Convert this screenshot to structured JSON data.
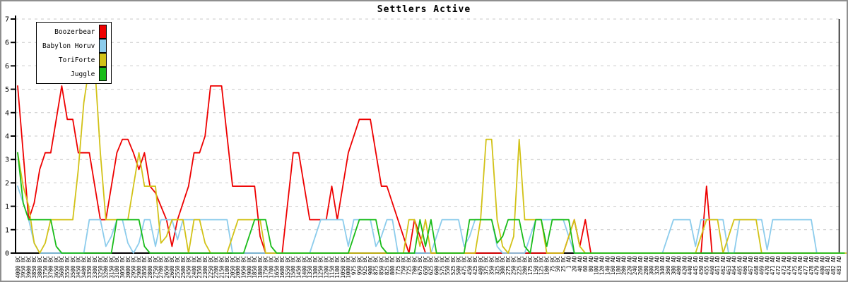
{
  "chart_data": {
    "type": "line",
    "title": "Settlers Active",
    "grid": "dashed-horizontal",
    "legend_position": "top-left",
    "y_axis": {
      "min": 0,
      "max": 7,
      "ticks": [
        {
          "v": 0,
          "label": "0"
        },
        {
          "v": 0.7,
          "label": "1"
        },
        {
          "v": 1.4,
          "label": "1"
        },
        {
          "v": 2.1,
          "label": "2"
        },
        {
          "v": 2.8,
          "label": "3"
        },
        {
          "v": 3.5,
          "label": "4"
        },
        {
          "v": 4.2,
          "label": "4"
        },
        {
          "v": 4.9,
          "label": "5"
        },
        {
          "v": 5.6,
          "label": "6"
        },
        {
          "v": 6.3,
          "label": "6"
        },
        {
          "v": 7,
          "label": "7"
        }
      ]
    },
    "x_labels": [
      "4000 BC",
      "3950 BC",
      "3900 BC",
      "3850 BC",
      "3800 BC",
      "3750 BC",
      "3700 BC",
      "3650 BC",
      "3600 BC",
      "3550 BC",
      "3500 BC",
      "3450 BC",
      "3400 BC",
      "3350 BC",
      "3300 BC",
      "3250 BC",
      "3200 BC",
      "3150 BC",
      "3100 BC",
      "3050 BC",
      "3000 BC",
      "2950 BC",
      "2900 BC",
      "2850 BC",
      "2800 BC",
      "2750 BC",
      "2700 BC",
      "2650 BC",
      "2600 BC",
      "2550 BC",
      "2500 BC",
      "2450 BC",
      "2400 BC",
      "2350 BC",
      "2300 BC",
      "2250 BC",
      "2200 BC",
      "2150 BC",
      "2100 BC",
      "2050 BC",
      "2000 BC",
      "1950 BC",
      "1900 BC",
      "1850 BC",
      "1800 BC",
      "1750 BC",
      "1700 BC",
      "1650 BC",
      "1600 BC",
      "1550 BC",
      "1500 BC",
      "1450 BC",
      "1400 BC",
      "1350 BC",
      "1300 BC",
      "1250 BC",
      "1200 BC",
      "1150 BC",
      "1100 BC",
      "1050 BC",
      "1000 BC",
      "975 BC",
      "950 BC",
      "925 BC",
      "900 BC",
      "875 BC",
      "850 BC",
      "825 BC",
      "800 BC",
      "775 BC",
      "750 BC",
      "725 BC",
      "700 BC",
      "675 BC",
      "650 BC",
      "625 BC",
      "600 BC",
      "575 BC",
      "550 BC",
      "525 BC",
      "500 BC",
      "475 BC",
      "450 BC",
      "425 BC",
      "400 BC",
      "375 BC",
      "350 BC",
      "325 BC",
      "300 BC",
      "275 BC",
      "250 BC",
      "225 BC",
      "200 BC",
      "175 BC",
      "150 BC",
      "125 BC",
      "100 BC",
      "75 BC",
      "50 BC",
      "25 BC",
      "1 AD",
      "20 AD",
      "40 AD",
      "60 AD",
      "80 AD",
      "100 AD",
      "120 AD",
      "140 AD",
      "160 AD",
      "180 AD",
      "200 AD",
      "220 AD",
      "240 AD",
      "260 AD",
      "280 AD",
      "300 AD",
      "320 AD",
      "340 AD",
      "360 AD",
      "380 AD",
      "400 AD",
      "420 AD",
      "440 AD",
      "445 AD",
      "450 AD",
      "455 AD",
      "460 AD",
      "461 AD",
      "462 AD",
      "463 AD",
      "464 AD",
      "465 AD",
      "466 AD",
      "467 AD",
      "468 AD",
      "469 AD",
      "470 AD",
      "471 AD",
      "472 AD",
      "473 AD",
      "474 AD",
      "475 AD",
      "476 AD",
      "477 AD",
      "478 AD",
      "479 AD",
      "480 AD",
      "481 AD",
      "482 AD",
      "483 AD"
    ],
    "series": [
      {
        "name": "Boozerbear",
        "key": "boozerbear",
        "color": "#ee0000",
        "values": [
          5,
          3,
          1,
          1.5,
          2.5,
          3,
          3,
          4,
          5,
          4,
          4,
          3,
          3,
          3,
          2,
          1,
          1,
          2,
          3,
          3.4,
          3.4,
          3,
          2.5,
          3,
          2,
          1.8,
          1.4,
          1,
          0.2,
          1,
          1.5,
          2,
          3,
          3,
          3.5,
          5,
          5,
          5,
          3.5,
          2,
          2,
          2,
          2,
          2,
          0.5,
          0,
          0,
          0,
          0,
          1.5,
          3,
          3,
          2,
          1,
          1,
          1,
          1,
          2,
          1,
          2,
          3,
          3.5,
          4,
          4,
          4,
          3,
          2,
          2,
          1.5,
          1,
          0.5,
          0,
          1,
          0.5,
          0,
          0,
          0,
          0,
          0,
          0,
          0,
          0,
          0,
          0,
          0,
          0,
          0,
          0,
          0,
          0,
          0,
          0,
          0,
          0,
          0,
          0,
          0,
          0,
          0,
          0,
          0.5,
          1,
          0.2,
          1,
          0,
          0,
          0,
          0,
          0,
          0,
          0,
          0,
          0,
          0,
          0,
          0,
          0,
          0,
          0,
          0,
          0,
          0,
          0,
          0,
          0,
          2,
          0,
          0,
          0,
          0,
          0,
          0,
          0,
          0,
          0,
          0,
          0,
          0,
          0,
          0,
          0,
          0,
          0,
          0,
          0,
          0,
          0,
          0,
          0,
          0
        ]
      },
      {
        "name": "Babylon Horuv",
        "key": "babylon-horuv",
        "color": "#8cccec",
        "values": [
          2,
          1.5,
          1,
          0.3,
          0,
          0,
          0,
          0,
          0,
          0,
          0,
          0,
          0,
          1,
          1,
          1,
          0.2,
          0.5,
          1,
          1,
          0.3,
          0,
          0.3,
          1,
          1,
          0.2,
          1,
          1,
          1,
          0.4,
          1,
          1,
          1,
          1,
          1,
          1,
          1,
          1,
          1,
          0,
          0,
          0,
          0,
          0,
          0,
          0,
          0,
          0,
          0,
          0,
          0,
          0,
          0,
          0,
          0.5,
          1,
          1,
          1,
          1,
          1,
          0.2,
          1,
          1,
          1,
          1,
          0.2,
          0.5,
          1,
          1,
          0,
          0,
          0,
          0,
          0,
          0,
          0,
          0.5,
          1,
          1,
          1,
          1,
          0.2,
          0.5,
          1,
          1,
          1,
          1,
          0.2,
          0,
          0,
          0,
          0,
          0,
          0.5,
          1,
          1,
          1,
          1,
          1,
          1,
          0.5,
          0,
          0,
          0,
          0,
          0,
          0,
          0,
          0,
          0,
          0,
          0,
          0,
          0,
          0,
          0,
          0,
          0,
          0.5,
          1,
          1,
          1,
          1,
          0.2,
          1,
          1,
          1,
          1,
          1,
          0,
          0,
          1,
          1,
          1,
          1,
          1,
          0.1,
          1,
          1,
          1,
          1,
          1,
          1,
          1,
          1,
          0,
          0,
          0,
          0,
          0,
          0
        ]
      },
      {
        "name": "ToriForte",
        "key": "toriforte",
        "color": "#d2c217",
        "values": [
          3,
          2,
          1.4,
          0.3,
          0,
          0.3,
          1,
          1,
          1,
          1,
          1,
          2.5,
          4.5,
          5.6,
          5.6,
          3,
          1,
          1,
          1,
          1,
          1,
          2,
          3,
          2,
          2,
          2,
          0.3,
          0.5,
          1,
          1,
          1,
          0,
          1,
          1,
          0.3,
          0,
          0,
          0,
          0,
          0.5,
          1,
          1,
          1,
          1,
          1,
          0,
          0,
          0,
          0,
          0,
          0,
          0,
          0,
          0,
          0,
          0,
          0,
          0,
          0,
          0,
          0,
          0,
          0,
          0,
          0,
          0,
          0,
          0,
          0,
          0,
          0,
          1,
          1,
          0.2,
          1,
          0,
          0,
          0,
          0,
          0,
          0,
          0,
          0,
          0,
          1,
          3.4,
          3.4,
          1,
          0.2,
          0,
          0.5,
          3.4,
          1,
          1,
          1,
          1,
          0,
          0,
          0,
          0,
          0.5,
          1,
          0.2,
          0,
          0,
          0,
          0,
          0,
          0,
          0,
          0,
          0,
          0,
          0,
          0,
          0,
          0,
          0,
          0,
          0,
          0,
          0,
          0,
          0,
          0.5,
          1,
          1,
          1,
          0,
          0.5,
          1,
          1,
          1,
          1,
          1,
          0,
          0,
          0,
          0,
          0,
          0,
          0,
          0,
          0,
          0,
          0,
          0,
          0,
          0,
          0,
          0,
          0
        ]
      },
      {
        "name": "Juggle",
        "key": "juggle",
        "color": "#19bc19",
        "values": [
          3,
          1.5,
          1,
          1,
          1,
          1,
          1,
          0.2,
          0,
          0,
          0,
          0,
          0,
          0,
          0,
          0,
          0,
          0,
          1,
          1,
          1,
          1,
          1,
          0.2,
          0,
          0,
          0,
          0,
          0,
          0,
          0,
          0,
          0,
          0,
          0,
          0,
          0,
          0,
          0,
          0,
          0,
          0,
          0.5,
          1,
          1,
          1,
          0.2,
          0,
          0,
          0,
          0,
          0,
          0,
          0,
          0,
          0,
          0,
          0,
          0,
          0,
          0,
          0.5,
          1,
          1,
          1,
          1,
          0.2,
          0,
          0,
          0,
          0,
          0,
          0,
          1,
          0.2,
          1,
          0,
          0,
          0,
          0,
          0,
          0,
          1,
          1,
          1,
          1,
          1,
          0.3,
          0.5,
          1,
          1,
          1,
          0.2,
          0,
          1,
          1,
          0.2,
          1,
          1,
          1,
          1,
          0,
          0,
          0,
          0,
          0,
          0,
          0,
          0,
          0,
          0,
          0,
          0,
          0,
          0,
          0,
          0,
          0,
          0,
          0,
          0,
          0,
          0,
          0,
          0,
          0,
          0,
          0,
          0,
          0,
          0,
          0,
          0,
          0,
          0,
          0,
          0,
          0,
          0,
          0,
          0,
          0,
          0,
          0,
          0,
          0,
          0,
          0,
          0,
          0,
          0
        ]
      }
    ]
  }
}
